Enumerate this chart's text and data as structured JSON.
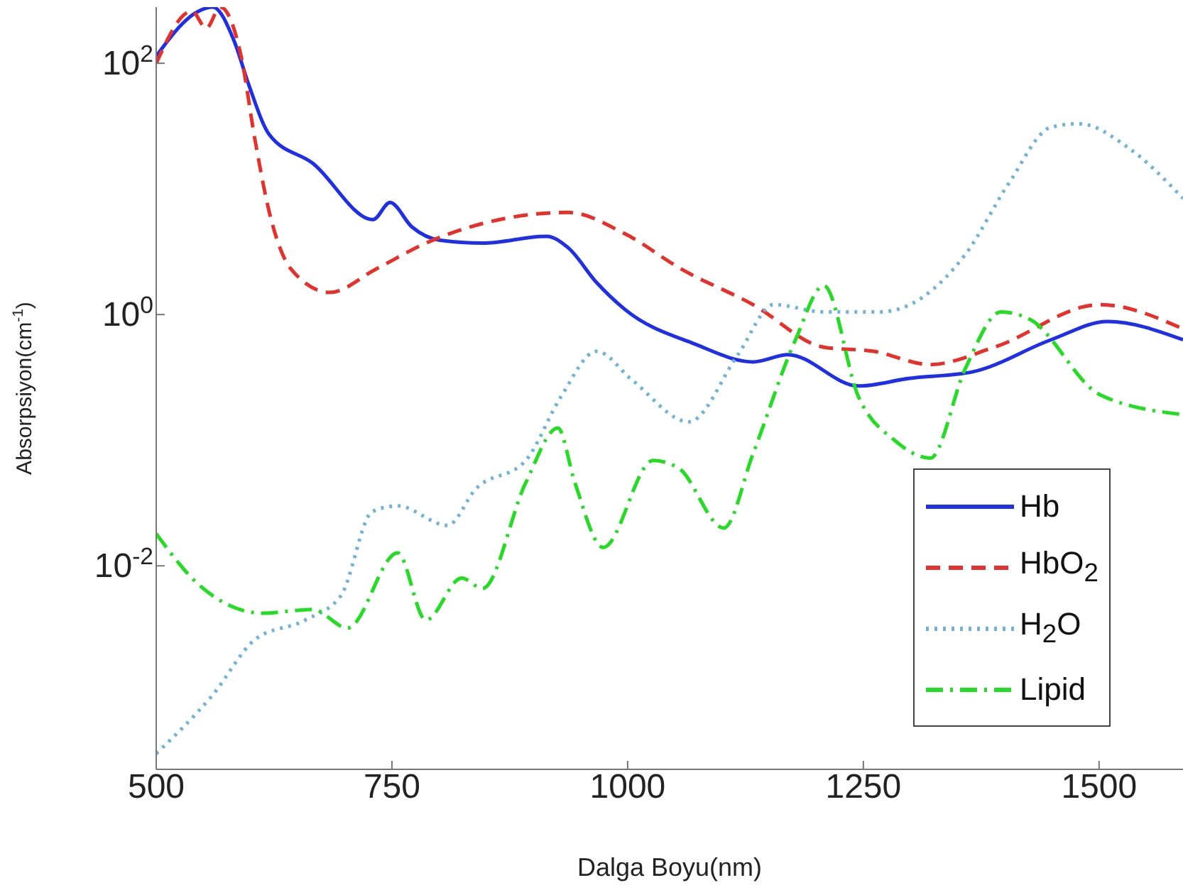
{
  "chart_data": {
    "type": "line",
    "xlabel": "Dalga Boyu(nm)",
    "ylabel": "Absorpsiyon(cm$^{-1}$)",
    "xlim": [
      500,
      1589
    ],
    "xticks": [
      500,
      750,
      1000,
      1250,
      1500
    ],
    "ylim": [
      0.00024,
      280
    ],
    "yticks": [
      {
        "value": 0.01,
        "label": "10$^{-2}$"
      },
      {
        "value": 1,
        "label": "10$^{0}$"
      },
      {
        "value": 100,
        "label": "10$^{2}$"
      }
    ],
    "log": "y",
    "grid": false,
    "legend": "bottom right",
    "marker": "none",
    "series": [
      {
        "name": "Hb",
        "color": "#1f2fe8",
        "line_style": "solid",
        "x": [
          500,
          545,
          560,
          583,
          598,
          620,
          666,
          730,
          748,
          771,
          801,
          846,
          914,
          937,
          967,
          997,
          1072,
          1133,
          1170,
          1245,
          1298,
          1366,
          1449,
          1509,
          1589
        ],
        "values": [
          114,
          260,
          280,
          148,
          68,
          27,
          16,
          5.7,
          7.8,
          5.0,
          3.9,
          3.7,
          4.2,
          3.4,
          1.8,
          1.1,
          0.58,
          0.42,
          0.48,
          0.27,
          0.31,
          0.35,
          0.63,
          0.88,
          0.63
        ]
      },
      {
        "name": "HbO$_{2}$",
        "color": "#e8302a",
        "line_style": "dashed",
        "x": [
          500,
          538,
          553,
          568,
          590,
          605,
          620,
          643,
          684,
          733,
          786,
          846,
          937,
          997,
          1057,
          1133,
          1208,
          1261,
          1321,
          1389,
          1501,
          1589
        ],
        "values": [
          100,
          260,
          190,
          280,
          114,
          24,
          6.5,
          2.3,
          1.5,
          2.3,
          3.7,
          5.3,
          6.5,
          4.4,
          2.3,
          1.2,
          0.55,
          0.51,
          0.4,
          0.55,
          1.2,
          0.77
        ]
      },
      {
        "name": "H$_{2}$O",
        "color": "#6fb4d8",
        "line_style": "dotted",
        "x": [
          500,
          560,
          605,
          658,
          696,
          729,
          756,
          809,
          839,
          892,
          929,
          967,
          1005,
          1065,
          1117,
          1155,
          1208,
          1268,
          1358,
          1404,
          1449,
          1479,
          1532,
          1589
        ],
        "values": [
          0.00032,
          0.00094,
          0.0026,
          0.0037,
          0.0058,
          0.027,
          0.03,
          0.021,
          0.041,
          0.069,
          0.22,
          0.51,
          0.3,
          0.14,
          0.48,
          1.2,
          1.05,
          1.05,
          3.0,
          11,
          31,
          33,
          21,
          8.4
        ]
      },
      {
        "name": "Lipid",
        "color": "#22dd22",
        "line_style": "dashdot",
        "x": [
          500,
          545,
          613,
          666,
          703,
          756,
          786,
          824,
          846,
          892,
          926,
          944,
          974,
          1027,
          1054,
          1102,
          1133,
          1178,
          1208,
          1245,
          1283,
          1321,
          1358,
          1396,
          1426,
          1501,
          1589
        ],
        "values": [
          0.018,
          0.0071,
          0.0042,
          0.0045,
          0.0032,
          0.0127,
          0.0037,
          0.008,
          0.0066,
          0.046,
          0.125,
          0.046,
          0.014,
          0.069,
          0.06,
          0.02,
          0.078,
          0.63,
          1.7,
          0.22,
          0.1,
          0.072,
          0.37,
          1.05,
          0.92,
          0.23,
          0.16
        ]
      }
    ]
  }
}
